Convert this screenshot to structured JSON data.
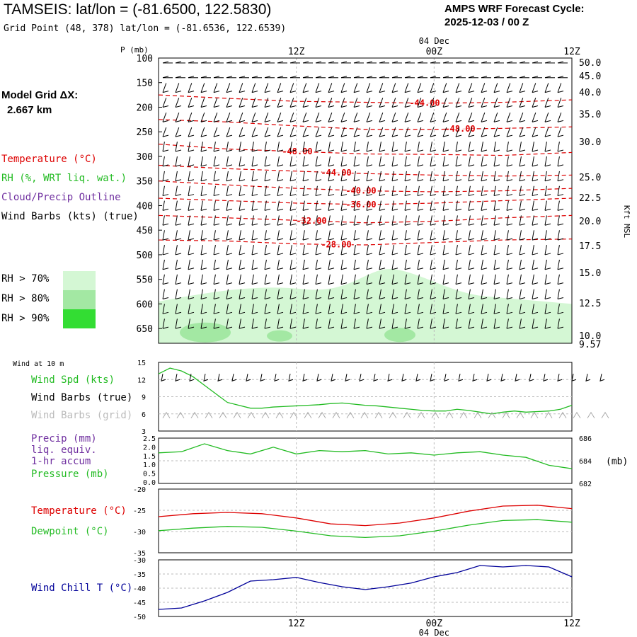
{
  "header": {
    "station_title": "TAMSEIS:  lat/lon = (-81.6500, 122.5830)",
    "grid_point": "Grid Point (48, 378) lat/lon = (-81.6536, 122.6539)",
    "forecast_label": "AMPS WRF Forecast Cycle:",
    "forecast_cycle": "2025-12-03 / 00  Z"
  },
  "model_grid": {
    "label": "Model Grid ΔX:",
    "value": "2.667 km"
  },
  "time_axis": {
    "ticks": [
      "12Z",
      "00Z",
      "12Z"
    ],
    "date_label": "04 Dec"
  },
  "upper_panel": {
    "pressure_unit_label": "P (mb)",
    "pressure_ticks": [
      100,
      150,
      200,
      250,
      300,
      350,
      400,
      450,
      500,
      550,
      600,
      650
    ],
    "height_ticks": [
      "50.0",
      "45.0",
      "40.0",
      "35.0",
      "30.0",
      "25.0",
      "22.5",
      "20.0",
      "17.5",
      "15.0",
      "12.5",
      "10.0",
      "9.57"
    ],
    "height_axis_label": "Kft MSL",
    "legend": {
      "temperature": "Temperature (°C)",
      "rh": "RH (%, WRT liq. wat.)",
      "cloud": "Cloud/Precip Outline",
      "wind": "Wind Barbs (kts) (true)"
    },
    "rh_key": [
      "RH > 70%",
      "RH > 80%",
      "RH > 90%"
    ],
    "colors": {
      "temperature": "#dd0000",
      "rh_legend": "#22bb22",
      "cloud_legend": "#7030a0",
      "rh70": "#d4f7d4",
      "rh80": "#a3e8a3",
      "rh90": "#33dd33"
    }
  },
  "wind10_panel": {
    "title": "Wind at 10 m",
    "legend": {
      "speed": "Wind Spd (kts)",
      "barbs_true": "Wind Barbs (true)",
      "barbs_grid": "Wind Barbs (grid)"
    },
    "y_ticks": [
      15,
      12,
      9,
      6,
      3
    ]
  },
  "precip_panel": {
    "legend": {
      "precip": "Precip (mm)",
      "liq": "liq. equiv.",
      "accum": "1-hr accum",
      "pressure": "Pressure (mb)"
    },
    "left_ticks": [
      "2.5",
      "2.0",
      "1.5",
      "1.0",
      "0.5",
      "0.0"
    ],
    "right_ticks": [
      "686",
      "684",
      "682"
    ],
    "right_unit": "(mb)"
  },
  "temp_panel": {
    "legend": {
      "temperature": "Temperature (°C)",
      "dewpoint": "Dewpoint (°C)"
    },
    "y_ticks": [
      -20,
      -25,
      -30,
      -35
    ]
  },
  "chill_panel": {
    "legend": {
      "windchill": "Wind Chill T (°C)"
    },
    "y_ticks": [
      -30,
      -35,
      -40,
      -45,
      -50
    ]
  },
  "chart_data": [
    {
      "type": "line",
      "panel": "upper-air time-height cross section",
      "x_unit": "forecast hour",
      "x_range": [
        0,
        36
      ],
      "y_unit": "pressure (mb)",
      "ylim": [
        100,
        680
      ],
      "temperature_contours": [
        {
          "label": "-44.00",
          "x": [
            0,
            6,
            12,
            18,
            24,
            30,
            36
          ],
          "y": [
            175,
            182,
            188,
            190,
            192,
            190,
            185
          ]
        },
        {
          "label": "-48.00",
          "x": [
            0,
            6,
            12,
            18,
            24,
            30,
            36
          ],
          "y": [
            225,
            230,
            238,
            245,
            245,
            243,
            240
          ]
        },
        {
          "label": "-48.00",
          "x": [
            0,
            6,
            12,
            18,
            24,
            30,
            36
          ],
          "y": [
            275,
            285,
            290,
            295,
            296,
            298,
            292
          ]
        },
        {
          "label": "-44.00",
          "x": [
            0,
            6,
            12,
            18,
            24,
            30,
            36
          ],
          "y": [
            318,
            325,
            330,
            335,
            338,
            340,
            338
          ]
        },
        {
          "label": "-40.00",
          "x": [
            0,
            6,
            12,
            18,
            24,
            30,
            36
          ],
          "y": [
            350,
            358,
            365,
            370,
            372,
            370,
            365
          ]
        },
        {
          "label": "-36.00",
          "x": [
            0,
            6,
            12,
            18,
            24,
            30,
            36
          ],
          "y": [
            385,
            390,
            395,
            398,
            395,
            390,
            385
          ]
        },
        {
          "label": "-32.00",
          "x": [
            0,
            6,
            12,
            18,
            24,
            30,
            36
          ],
          "y": [
            420,
            425,
            430,
            435,
            432,
            425,
            420
          ]
        },
        {
          "label": "-28.00",
          "x": [
            0,
            6,
            12,
            18,
            24,
            30,
            36
          ],
          "y": [
            470,
            472,
            478,
            480,
            475,
            470,
            468
          ]
        }
      ],
      "rh_regions": "RH > 70% throughout 550-680 mb; RH > 80% in small pockets near 650 mb",
      "wind_barbs": "westerly to northwesterly barbs at every level, roughly 10-20 kts"
    },
    {
      "type": "line",
      "panel": "Wind at 10 m",
      "ylabel": "Wind Spd (kts)",
      "ylim": [
        3,
        15
      ],
      "x": [
        0,
        1,
        2,
        3,
        4,
        5,
        6,
        7,
        8,
        9,
        10,
        11,
        12,
        13,
        14,
        15,
        16,
        17,
        18,
        19,
        20,
        21,
        22,
        23,
        24,
        25,
        26,
        27,
        28,
        29,
        30,
        31,
        32,
        33,
        34,
        35,
        36
      ],
      "series": [
        {
          "name": "Wind Spd (kts)",
          "color": "#22bb22",
          "values": [
            13,
            14,
            13.5,
            12.5,
            11,
            9.5,
            8,
            7.5,
            7,
            7,
            7.2,
            7.3,
            7.4,
            7.5,
            7.6,
            7.8,
            7.9,
            7.7,
            7.5,
            7.4,
            7.2,
            7,
            6.8,
            6.6,
            6.5,
            6.5,
            6.8,
            6.6,
            6.3,
            6.0,
            6.3,
            6.5,
            6.3,
            6.4,
            6.5,
            6.8,
            7.5
          ]
        }
      ]
    },
    {
      "type": "line",
      "panel": "Precip / Pressure",
      "ylabel": "Pressure (mb)",
      "ylim": [
        682,
        686
      ],
      "x": [
        0,
        2,
        4,
        6,
        8,
        10,
        12,
        14,
        16,
        18,
        20,
        22,
        24,
        26,
        28,
        30,
        32,
        34,
        36
      ],
      "series": [
        {
          "name": "Pressure (mb)",
          "color": "#22bb22",
          "values": [
            684.7,
            684.8,
            685.5,
            684.9,
            684.6,
            685.2,
            684.6,
            684.9,
            684.8,
            684.9,
            684.6,
            684.7,
            684.5,
            684.7,
            684.8,
            684.5,
            684.3,
            683.6,
            683.3
          ]
        }
      ]
    },
    {
      "type": "line",
      "panel": "Temperature / Dewpoint",
      "ylabel": "°C",
      "ylim": [
        -35,
        -20
      ],
      "x": [
        0,
        3,
        6,
        9,
        12,
        15,
        18,
        21,
        24,
        27,
        30,
        33,
        36
      ],
      "series": [
        {
          "name": "Temperature (°C)",
          "color": "#dd0000",
          "values": [
            -26.5,
            -25.8,
            -25.5,
            -25.8,
            -26.8,
            -28.2,
            -28.6,
            -28.0,
            -26.8,
            -25.2,
            -24.0,
            -23.8,
            -24.6
          ]
        },
        {
          "name": "Dewpoint (°C)",
          "color": "#22bb22",
          "values": [
            -29.8,
            -29.2,
            -28.8,
            -29.0,
            -29.9,
            -31.0,
            -31.4,
            -31.0,
            -29.9,
            -28.5,
            -27.4,
            -27.2,
            -27.8
          ]
        }
      ]
    },
    {
      "type": "line",
      "panel": "Wind Chill",
      "ylabel": "Wind Chill T (°C)",
      "ylim": [
        -50,
        -30
      ],
      "x": [
        0,
        2,
        4,
        6,
        8,
        10,
        12,
        14,
        16,
        18,
        20,
        22,
        24,
        26,
        28,
        30,
        32,
        34,
        36
      ],
      "series": [
        {
          "name": "Wind Chill T (°C)",
          "color": "#000099",
          "values": [
            -47.5,
            -47.0,
            -44.5,
            -41.5,
            -37.5,
            -37.0,
            -36.2,
            -38.0,
            -39.5,
            -40.5,
            -39.5,
            -38.2,
            -36.0,
            -34.5,
            -32.0,
            -32.5,
            -32.0,
            -32.5,
            -36.0
          ]
        }
      ]
    }
  ]
}
